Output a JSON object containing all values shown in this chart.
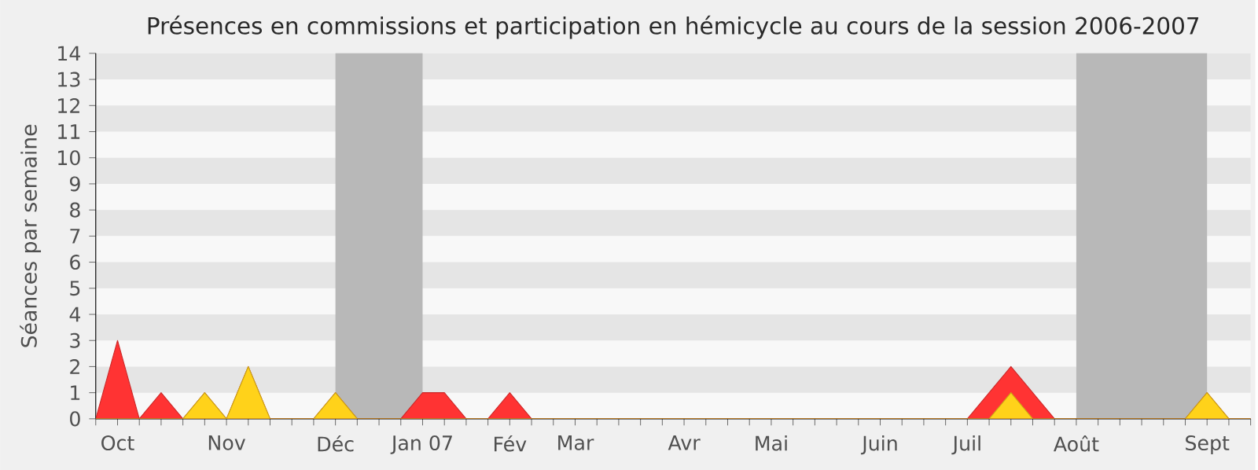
{
  "chart_data": {
    "type": "area",
    "title": "Présences en commissions et participation en hémicycle au cours de la session 2006-2007",
    "ylabel": "Séances par semaine",
    "categories": [
      null,
      "Oct",
      null,
      null,
      null,
      null,
      "Nov",
      null,
      null,
      null,
      null,
      "Déc",
      null,
      null,
      null,
      "Jan 07",
      null,
      null,
      null,
      "Fév",
      null,
      null,
      "Mar",
      null,
      null,
      null,
      null,
      "Avr",
      null,
      null,
      null,
      "Mai",
      null,
      null,
      null,
      null,
      "Juin",
      null,
      null,
      null,
      "Juil",
      null,
      null,
      null,
      null,
      "Août",
      null,
      null,
      null,
      null,
      null,
      "Sept",
      null,
      null
    ],
    "series": [
      {
        "color": "#ff3333",
        "values": [
          0,
          3,
          0,
          1,
          0,
          1,
          0,
          2,
          0,
          0,
          0,
          1,
          0,
          0,
          0,
          1,
          1,
          0,
          0,
          1,
          0,
          0,
          0,
          0,
          0,
          0,
          0,
          0,
          0,
          0,
          0,
          0,
          0,
          0,
          0,
          0,
          0,
          0,
          0,
          0,
          0,
          1,
          2,
          1,
          0,
          0,
          0,
          0,
          0,
          0,
          0,
          1,
          0,
          0
        ]
      },
      {
        "color": "#ffd21a",
        "values": [
          0,
          0,
          0,
          0,
          0,
          1,
          0,
          2,
          0,
          0,
          0,
          1,
          0,
          0,
          0,
          0,
          0,
          0,
          0,
          0,
          0,
          0,
          0,
          0,
          0,
          0,
          0,
          0,
          0,
          0,
          0,
          0,
          0,
          0,
          0,
          0,
          0,
          0,
          0,
          0,
          0,
          0,
          1,
          0,
          0,
          0,
          0,
          0,
          0,
          0,
          0,
          1,
          0,
          0
        ]
      }
    ],
    "bands": [
      {
        "axis": "x",
        "from": "Déc",
        "to": "Jan 07",
        "color": "#b8b8b8"
      },
      {
        "axis": "x",
        "from": "Août",
        "to": "Sept",
        "color": "#b8b8b8"
      }
    ],
    "ylim": [
      0,
      14
    ],
    "yticks": [
      0,
      1,
      2,
      3,
      4,
      5,
      6,
      7,
      8,
      9,
      10,
      11,
      12,
      13,
      14
    ]
  }
}
